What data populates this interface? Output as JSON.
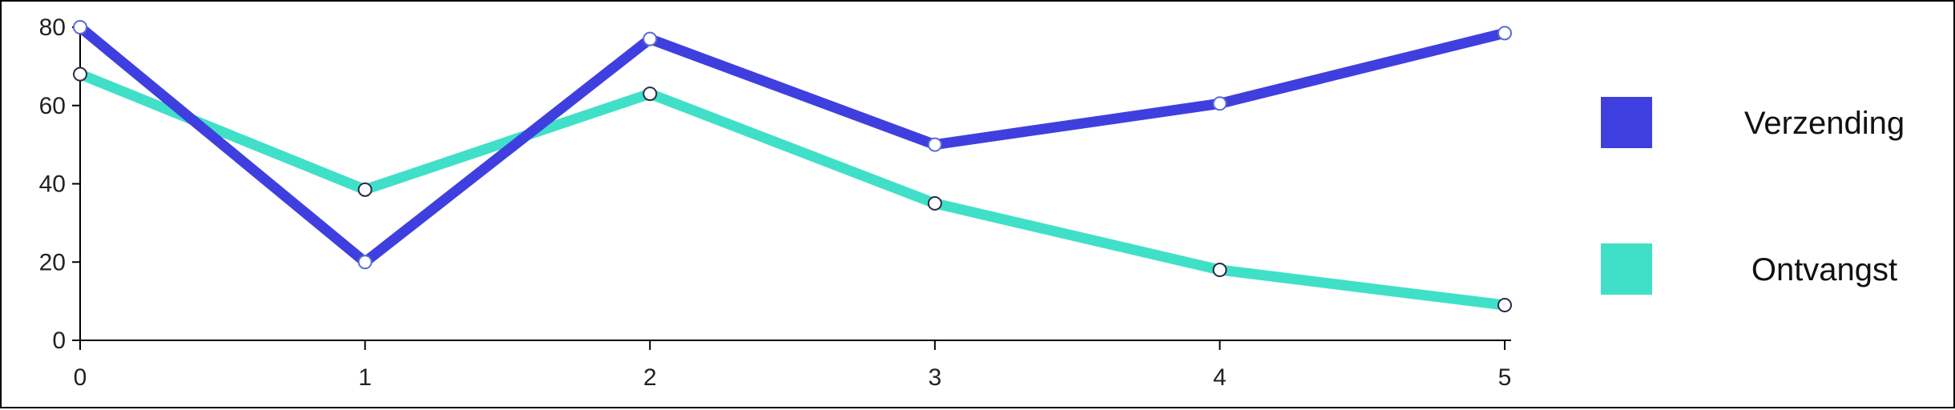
{
  "chart_data": {
    "type": "line",
    "x": [
      0,
      1,
      2,
      3,
      4,
      5
    ],
    "series": [
      {
        "name": "Verzending",
        "values": [
          80,
          20,
          77,
          50,
          60.5,
          78.5
        ],
        "color": "#3f3fe0",
        "marker_edge": "#ffffff",
        "marker_fill": "#ffffff"
      },
      {
        "name": "Ontvangst",
        "values": [
          68,
          38.5,
          63,
          35,
          18,
          9
        ],
        "color": "#40e0c8",
        "marker_edge": "#2a2a4a",
        "marker_fill": "#ffffff"
      }
    ],
    "x_ticks": [
      "0",
      "1",
      "2",
      "3",
      "4",
      "5"
    ],
    "y_ticks": [
      "0",
      "20",
      "40",
      "60",
      "80"
    ],
    "ylim": [
      0,
      80
    ],
    "xlim": [
      0,
      5
    ],
    "grid": false,
    "legend_position": "right",
    "title": "",
    "xlabel": "",
    "ylabel": ""
  }
}
